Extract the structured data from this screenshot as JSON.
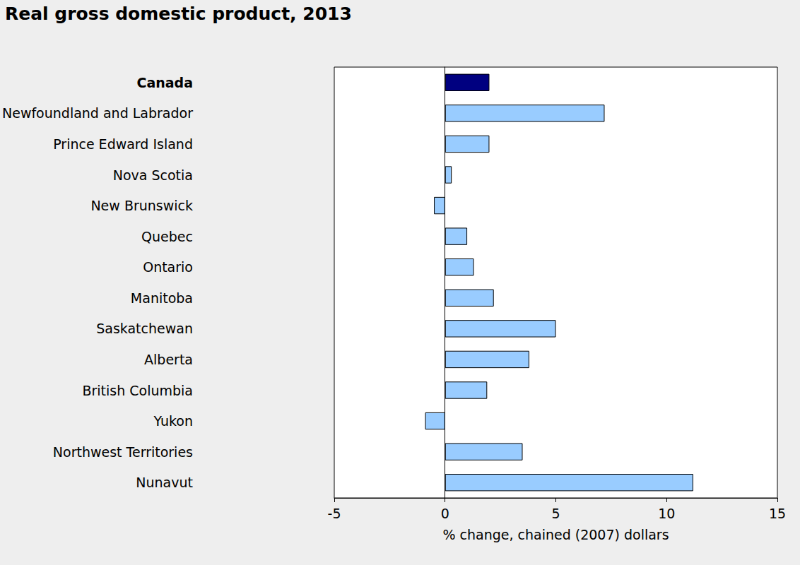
{
  "chart_data": {
    "type": "bar",
    "orientation": "horizontal",
    "title": "Real gross domestic product, 2013",
    "x_label": "% change, chained (2007) dollars",
    "categories": [
      "Canada",
      "Newfoundland and Labrador",
      "Prince Edward Island",
      "Nova Scotia",
      "New Brunswick",
      "Quebec",
      "Ontario",
      "Manitoba",
      "Saskatchewan",
      "Alberta",
      "British Columbia",
      "Yukon",
      "Northwest Territories",
      "Nunavut"
    ],
    "values": [
      2.0,
      7.2,
      2.0,
      0.3,
      -0.5,
      1.0,
      1.3,
      2.2,
      5.0,
      3.8,
      1.9,
      -0.9,
      3.5,
      11.2
    ],
    "colors": [
      "#000080",
      "#99ccff",
      "#99ccff",
      "#99ccff",
      "#99ccff",
      "#99ccff",
      "#99ccff",
      "#99ccff",
      "#99ccff",
      "#99ccff",
      "#99ccff",
      "#99ccff",
      "#99ccff",
      "#99ccff"
    ],
    "xlim": [
      -5,
      15
    ],
    "xticks": [
      -5,
      0,
      5,
      10,
      15
    ],
    "grid": false
  }
}
